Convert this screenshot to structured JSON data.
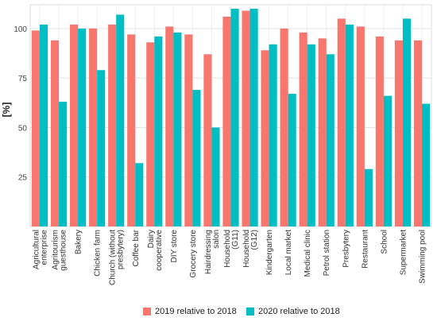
{
  "chart_data": {
    "type": "bar",
    "xlabel": "",
    "ylabel": "[%]",
    "ylim": [
      0,
      112
    ],
    "yticks": [
      25,
      50,
      75,
      100
    ],
    "grid": true,
    "legend_position": "bottom",
    "categories": [
      "Agricultural enterprise",
      "Agritourism guesthouse",
      "Bakery",
      "Chicken farm",
      "Church (without presbytery)",
      "Coffee bar",
      "Dairy cooperative",
      "DIY store",
      "Grocery store",
      "Hairdressing salon",
      "Household (G11)",
      "Household (G12)",
      "Kindergarten",
      "Local market",
      "Medical clinic",
      "Petrol station",
      "Presbytery",
      "Restaurant",
      "School",
      "Supermarket",
      "Swimming pool"
    ],
    "series": [
      {
        "name": "2019 relative to 2018",
        "color": "#F8766D",
        "values": [
          99,
          94,
          102,
          100,
          102,
          97,
          93,
          101,
          97,
          87,
          106,
          109,
          89,
          100,
          98,
          95,
          105,
          101,
          96,
          94,
          94
        ]
      },
      {
        "name": "2020 relative to 2018",
        "color": "#00BFC4",
        "values": [
          102,
          63,
          100,
          79,
          107,
          32,
          96,
          98,
          69,
          50,
          110,
          110,
          92,
          67,
          92,
          87,
          102,
          29,
          66,
          105,
          62
        ]
      }
    ]
  }
}
